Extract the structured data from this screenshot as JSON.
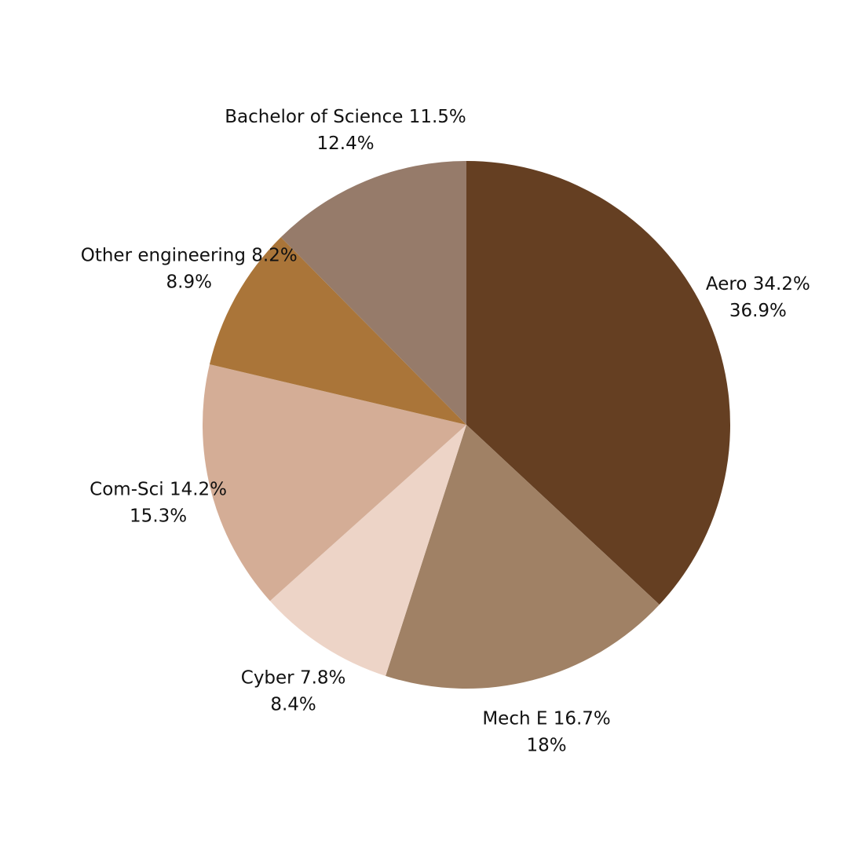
{
  "chart_data": {
    "type": "pie",
    "categories": [
      "Aero 34.2%",
      "Mech E 16.7%",
      "Cyber 7.8%",
      "Com-Sci 14.2%",
      "Other engineering 8.2%",
      "Bachelor of Science 11.5%"
    ],
    "values": [
      36.9,
      18,
      8.4,
      15.3,
      8.9,
      12.4
    ],
    "value_labels": [
      "36.9%",
      "18%",
      "8.4%",
      "15.3%",
      "8.9%",
      "12.4%"
    ],
    "colors": [
      "#653f22",
      "#a08165",
      "#edd4c7",
      "#d4ad96",
      "#aa7539",
      "#967b6a"
    ]
  }
}
